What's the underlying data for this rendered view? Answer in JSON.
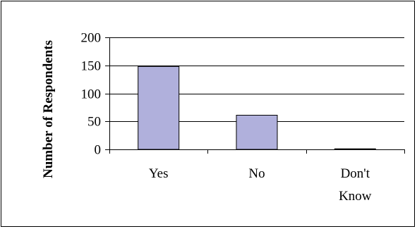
{
  "chart_data": {
    "type": "bar",
    "title": "",
    "xlabel": "",
    "ylabel": "Number of Respondents",
    "categories": [
      "Yes",
      "No",
      "Don't Know"
    ],
    "category_lines": [
      [
        "Yes"
      ],
      [
        "No"
      ],
      [
        "Don't",
        "Know"
      ]
    ],
    "values": [
      148,
      61,
      1
    ],
    "ylim": [
      0,
      200
    ],
    "yticks": [
      0,
      50,
      100,
      150,
      200
    ],
    "grid": true,
    "legend": "none",
    "bar_color": "#b0b0dc",
    "bar_edge_color": "#000000"
  }
}
